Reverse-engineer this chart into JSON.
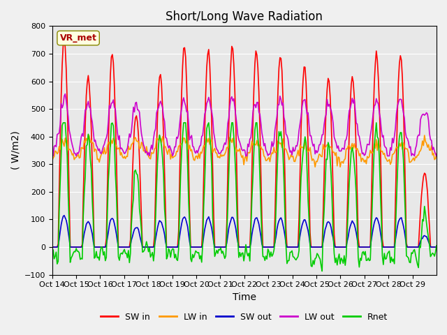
{
  "title": "Short/Long Wave Radiation",
  "xlabel": "Time",
  "ylabel": "( W/m2)",
  "ylim": [
    -100,
    800
  ],
  "n_days": 16,
  "xtick_labels": [
    "Oct 14",
    "Oct 15",
    "Oct 16",
    "Oct 17",
    "Oct 18",
    "Oct 19",
    "Oct 20",
    "Oct 21",
    "Oct 22",
    "Oct 23",
    "Oct 24",
    "Oct 25",
    "Oct 26",
    "Oct 27",
    "Oct 28",
    "Oct 29"
  ],
  "series_names": [
    "SW in",
    "LW in",
    "SW out",
    "LW out",
    "Rnet"
  ],
  "series_colors": [
    "#ff0000",
    "#ff9900",
    "#0000cc",
    "#cc00cc",
    "#00cc00"
  ],
  "line_widths": [
    1.2,
    1.2,
    1.2,
    1.2,
    1.2
  ],
  "station_label": "VR_met",
  "legend_ncol": 5,
  "plot_bg_color": "#e8e8e8",
  "fig_bg_color": "#f0f0f0",
  "title_fontsize": 12,
  "axis_fontsize": 10,
  "tick_fontsize": 8,
  "sw_in_peaks": [
    760,
    620,
    700,
    480,
    625,
    730,
    710,
    720,
    710,
    695,
    650,
    610,
    615,
    700,
    700,
    265
  ],
  "yticks": [
    -100,
    0,
    100,
    200,
    300,
    400,
    500,
    600,
    700,
    800
  ]
}
